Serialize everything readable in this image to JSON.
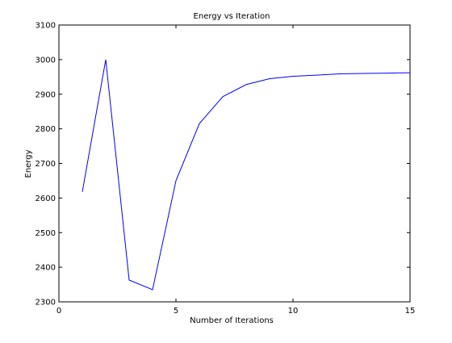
{
  "chart_data": {
    "type": "line",
    "title": "Energy vs Iteration",
    "xlabel": "Number of Iterations",
    "ylabel": "Energy",
    "xlim": [
      0,
      15
    ],
    "ylim": [
      2300,
      3100
    ],
    "xticks": [
      0,
      5,
      10,
      15
    ],
    "yticks": [
      2300,
      2400,
      2500,
      2600,
      2700,
      2800,
      2900,
      3000,
      3100
    ],
    "grid": false,
    "legend": "none",
    "series": [
      {
        "color": "#0000ff",
        "x": [
          1,
          2,
          3,
          4,
          5,
          6,
          7,
          8,
          9,
          10,
          11,
          12,
          13,
          14,
          15
        ],
        "y": [
          2618,
          3000,
          2363,
          2335,
          2650,
          2815,
          2893,
          2928,
          2945,
          2952,
          2955,
          2959,
          2960,
          2961,
          2962
        ]
      }
    ]
  }
}
